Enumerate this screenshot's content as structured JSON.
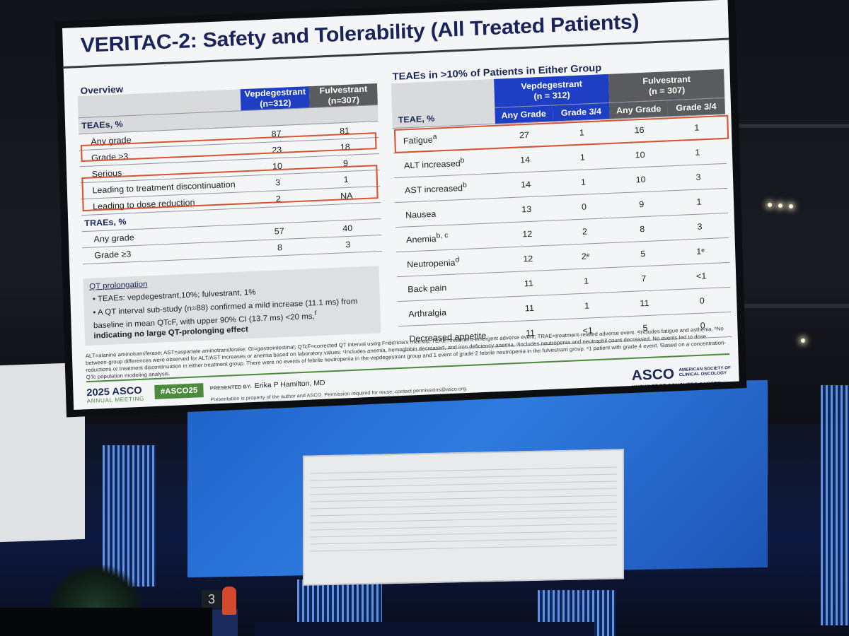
{
  "slide": {
    "title": "VERITAC-2: Safety and Tolerability (All Treated Patients)",
    "overview": {
      "heading": "Overview",
      "col_vep": "Vepdegestrant",
      "col_vep_n": "(n=312)",
      "col_ful": "Fulvestrant",
      "col_ful_n": "(n=307)",
      "teae_label": "TEAEs, %",
      "teae_rows": [
        {
          "label": "Any grade",
          "vep": "87",
          "ful": "81"
        },
        {
          "label": "Grade ≥3",
          "vep": "23",
          "ful": "18"
        },
        {
          "label": "Serious",
          "vep": "10",
          "ful": "9"
        },
        {
          "label": "Leading to treatment discontinuation",
          "vep": "3",
          "ful": "1"
        },
        {
          "label": "Leading to dose reduction",
          "vep": "2",
          "ful": "NA"
        }
      ],
      "trae_label": "TRAEs, %",
      "trae_rows": [
        {
          "label": "Any grade",
          "vep": "57",
          "ful": "40"
        },
        {
          "label": "Grade ≥3",
          "vep": "8",
          "ful": "3"
        }
      ]
    },
    "qt": {
      "heading": "QT prolongation",
      "bullet1": "TEAEs: vepdegestrant,10%; fulvestrant, 1%",
      "bullet2": "A QT interval sub-study (n=88) confirmed a mild increase (11.1 ms) from baseline in mean QTcF, with upper 90% CI (13.7 ms) <20 ms,",
      "bullet2_sup": "f",
      "bullet2_bold": "indicating no large QT-prolonging effect"
    },
    "teae_table": {
      "heading": "TEAEs in >10% of Patients in Either Group",
      "col_vep": "Vepdegestrant",
      "col_vep_n": "(n = 312)",
      "col_ful": "Fulvestrant",
      "col_ful_n": "(n = 307)",
      "teae_label": "TEAE, %",
      "sub_any": "Any Grade",
      "sub_34": "Grade 3/4",
      "rows": [
        {
          "name": "Fatigue",
          "sup": "a",
          "v_any": "27",
          "v_34": "1",
          "f_any": "16",
          "f_34": "1"
        },
        {
          "name": "ALT increased",
          "sup": "b",
          "v_any": "14",
          "v_34": "1",
          "f_any": "10",
          "f_34": "1"
        },
        {
          "name": "AST increased",
          "sup": "b",
          "v_any": "14",
          "v_34": "1",
          "f_any": "10",
          "f_34": "3"
        },
        {
          "name": "Nausea",
          "sup": "",
          "v_any": "13",
          "v_34": "0",
          "f_any": "9",
          "f_34": "1"
        },
        {
          "name": "Anemia",
          "sup": "b, c",
          "v_any": "12",
          "v_34": "2",
          "f_any": "8",
          "f_34": "3"
        },
        {
          "name": "Neutropenia",
          "sup": "d",
          "v_any": "12",
          "v_34": "2ᵉ",
          "f_any": "5",
          "f_34": "1ᵉ"
        },
        {
          "name": "Back pain",
          "sup": "",
          "v_any": "11",
          "v_34": "1",
          "f_any": "7",
          "f_34": "<1"
        },
        {
          "name": "Arthralgia",
          "sup": "",
          "v_any": "11",
          "v_34": "1",
          "f_any": "11",
          "f_34": "0"
        },
        {
          "name": "Decreased appetite",
          "sup": "",
          "v_any": "11",
          "v_34": "<1",
          "f_any": "5",
          "f_34": "0"
        }
      ]
    },
    "footnote": "ALT=alanine aminotransferase; AST=aspartate aminotransferase; GI=gastrointestinal; QTcF=corrected QT interval using Fridericia's method; TEAE=treatment-emergent adverse event; TRAE=treatment-related adverse event. ᵃIncludes fatigue and asthenia. ᵇNo between-group differences were observed for ALT/AST increases or anemia based on laboratory values. ᶜIncludes anemia, hemoglobin decreased, and iron deficiency anemia. ᵈIncludes neutropenia and neutrophil count decreased. No events led to dose reductions or treatment discontinuation in either treatment group. There were no events of febrile neutropenia in the vepdegestrant group and 1 event of grade 2 febrile neutropenia in the fulvestrant group. ᵉ1 patient with grade 4 event. ᶠBased on a concentration-QTc population modeling analysis.",
    "footer": {
      "meeting_year": "2025 ASCO",
      "meeting_name": "ANNUAL MEETING",
      "hashtag": "#ASCO25",
      "presented_by_label": "PRESENTED BY:",
      "presenter": "Erika P Hamilton, MD",
      "permission": "Presentation is property of the author and ASCO. Permission required for reuse; contact permissions@asco.org.",
      "asco_logo": "ASCO",
      "asco_name": "AMERICAN SOCIETY OF CLINICAL ONCOLOGY",
      "asco_tagline": "KNOWLEDGE CONQUERS CANCER"
    }
  },
  "stage": {
    "podium_number": "3"
  }
}
